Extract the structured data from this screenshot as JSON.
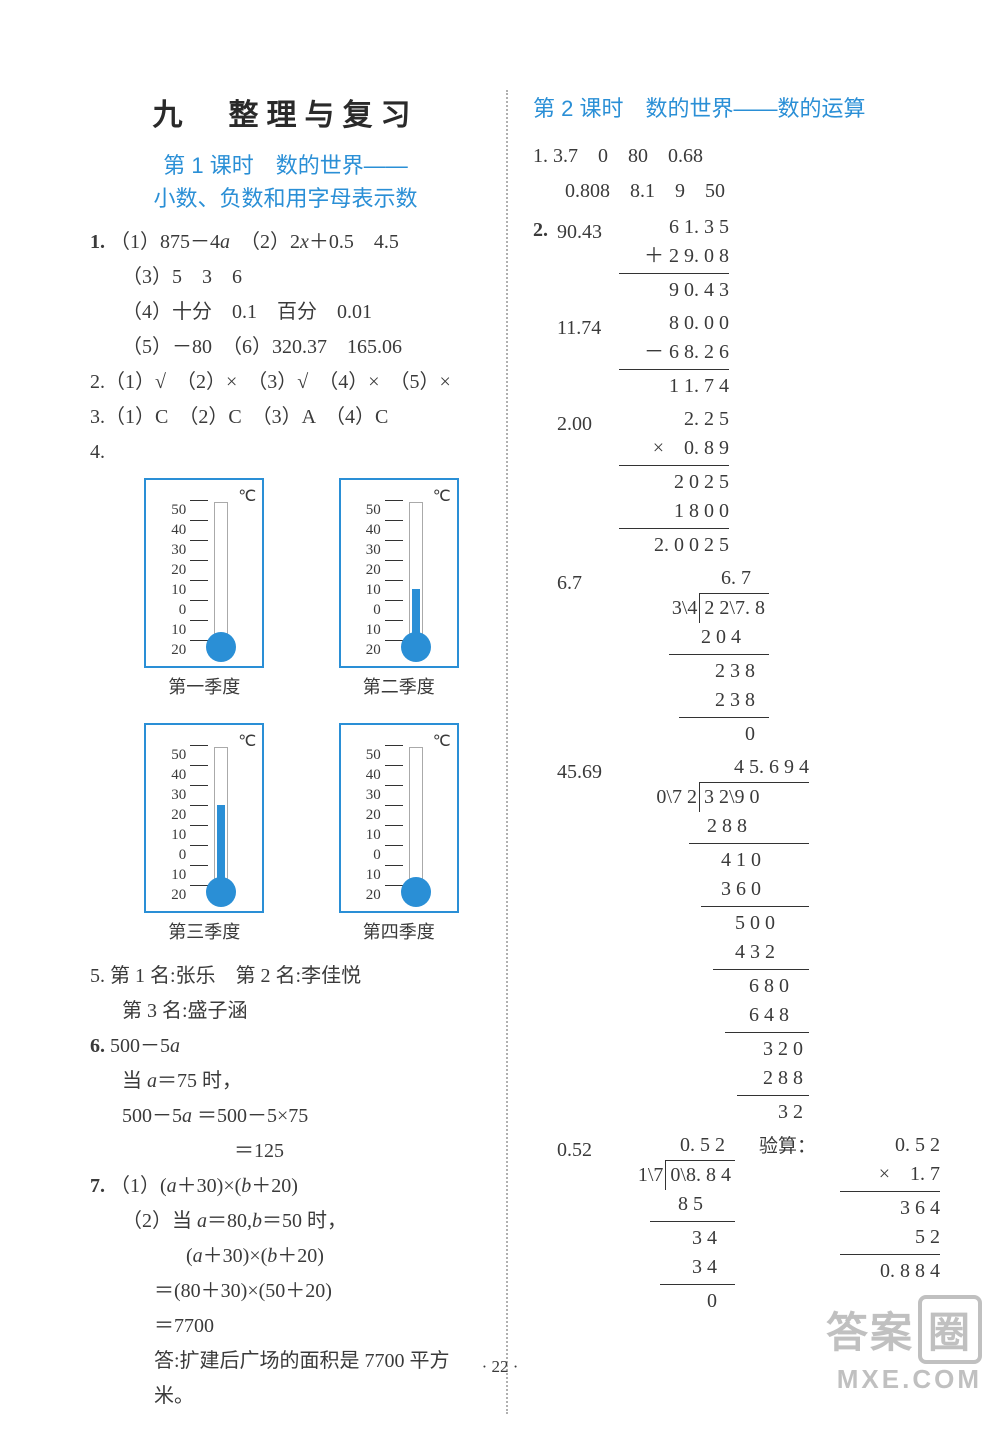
{
  "page_number": "· 22 ·",
  "watermark": {
    "line1_a": "答案",
    "line1_b": "圈",
    "line2": "MXE.COM"
  },
  "left": {
    "title_main": "九　整理与复习",
    "title_sub_l1": "第 1 课时　数的世界——",
    "title_sub_l2": "小数、负数和用字母表示数",
    "q1": {
      "l1": "1.（1）875－4a　（2）2x＋0.5　4.5",
      "l2": "（3）5　3　6",
      "l3": "（4）十分　0.1　百分　0.01",
      "l4": "（5）－80　（6）320.37　165.06"
    },
    "q2": "2.（1）√　（2）×　（3）√　（4）×　（5）×",
    "q3": "3.（1）C　（2）C　（3）A　（4）C",
    "q4_label": "4.",
    "thermos": {
      "unit": "℃",
      "scale": [
        "50",
        "40",
        "30",
        "20",
        "10",
        "0",
        "10",
        "20"
      ],
      "items": [
        {
          "label": "第一季度",
          "fill_pct": 0
        },
        {
          "label": "第二季度",
          "fill_pct": 42
        },
        {
          "label": "第三季度",
          "fill_pct": 62
        },
        {
          "label": "第四季度",
          "fill_pct": 5
        }
      ],
      "border_color": "#2a8fd6",
      "fill_color": "#2a8fd6"
    },
    "q5": {
      "l1": "5. 第 1 名:张乐　第 2 名:李佳悦",
      "l2": "第 3 名:盛子涵"
    },
    "q6": {
      "l1": "6. 500－5a",
      "l2": "当 a＝75 时，",
      "l3": "500－5a ＝500－5×75",
      "l4": "＝125"
    },
    "q7": {
      "l1": "7.（1）(a＋30)×(b＋20)",
      "l2": "（2）当 a＝80,b＝50 时，",
      "l3": "(a＋30)×(b＋20)",
      "l4": "＝(80＋30)×(50＋20)",
      "l5": "＝7700",
      "l6": "答:扩建后广场的面积是 7700 平方米。"
    }
  },
  "right": {
    "title": "第 2 课时　数的世界——数的运算",
    "q1": {
      "l1": "1. 3.7　0　80　0.68",
      "l2": "0.808　8.1　9　50"
    },
    "q2_label": "2.",
    "calc1": {
      "label": "90.43",
      "a": "6 1. 3 5",
      "op": "＋  2 9. 0 8",
      "res": "9 0. 4 3"
    },
    "calc2": {
      "label": "11.74",
      "a": "8 0. 0 0",
      "op": "－  6 8. 2 6",
      "res": "1 1. 7 4"
    },
    "calc3": {
      "label": "2.00",
      "a": "2. 2 5",
      "op": "×　0. 8 9",
      "p1": "2 0 2 5",
      "p2": "1 8 0 0　",
      "res": "2. 0 0 2 5"
    },
    "calc4": {
      "label": "6.7",
      "quot": "6. 7",
      "divisor": "3\\4",
      "dividend": "2 2\\7. 8",
      "s1": "2 0 4",
      "s2": "2 3 8",
      "s3": "2 3 8",
      "s4": "0"
    },
    "calc5": {
      "label": "45.69",
      "quot": "4 5. 6 9 4",
      "divisor": "0\\7 2",
      "dividend": "3 2\\9 0",
      "steps": [
        "2 8 8",
        "4 1 0",
        "3 6 0",
        "5 0 0",
        "4 3 2",
        "6 8 0",
        "6 4 8",
        "3 2 0",
        "2 8 8",
        "3 2"
      ]
    },
    "calc6": {
      "label": "0.52",
      "quot": "0. 5 2",
      "divisor": "1\\7",
      "dividend": "0\\8. 8 4",
      "s1": "8 5",
      "s2": "3 4",
      "s3": "3 4",
      "s4": "0",
      "verify_label": "验算：",
      "va": "0. 5 2",
      "vop": "×　1. 7",
      "vp1": "3 6 4",
      "vp2": "5 2　",
      "vres": "0. 8 8 4"
    }
  }
}
